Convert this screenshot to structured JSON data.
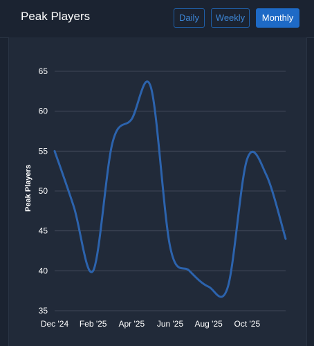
{
  "header": {
    "title": "Peak Players",
    "buttons": [
      {
        "label": "Daily",
        "active": false
      },
      {
        "label": "Weekly",
        "active": false
      },
      {
        "label": "Monthly",
        "active": true
      }
    ]
  },
  "colors": {
    "background": "#1b2331",
    "panel": "#212a39",
    "accent": "#1e6ac6",
    "line": "#2c63ad",
    "grid": "#4a5262"
  },
  "chart_data": {
    "type": "line",
    "ylabel": "Peak Players",
    "xlabel": "",
    "ylim": [
      35,
      65
    ],
    "yticks": [
      35,
      40,
      45,
      50,
      55,
      60,
      65
    ],
    "xtick_labels": [
      "Dec '24",
      "Feb '25",
      "Apr '25",
      "Jun '25",
      "Aug '25",
      "Oct '25"
    ],
    "x": [
      "Dec '24",
      "Jan '25",
      "Feb '25",
      "Mar '25",
      "Apr '25",
      "May '25",
      "Jun '25",
      "Jul '25",
      "Aug '25",
      "Sep '25",
      "Oct '25",
      "Nov '25",
      "Dec '25"
    ],
    "series": [
      {
        "values": [
          55,
          48,
          40,
          56,
          59,
          63,
          43,
          40,
          38,
          38,
          54,
          52,
          44
        ]
      }
    ],
    "grid": true,
    "legend": "none"
  }
}
